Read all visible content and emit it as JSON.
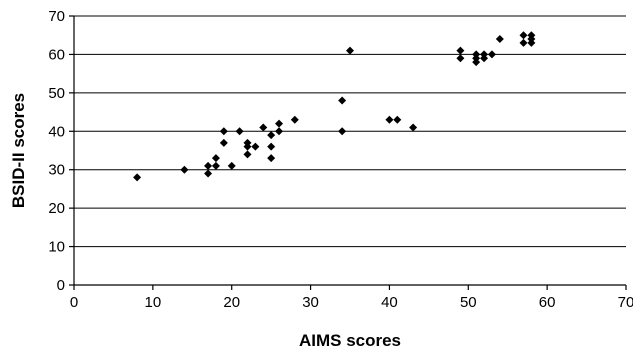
{
  "chart_data": {
    "type": "scatter",
    "title": "",
    "xlabel": "AIMS scores",
    "ylabel": "BSID-II scores",
    "xlim": [
      0,
      70
    ],
    "ylim": [
      0,
      70
    ],
    "xticks": [
      0,
      10,
      20,
      30,
      40,
      50,
      60,
      70
    ],
    "yticks": [
      0,
      10,
      20,
      30,
      40,
      50,
      60,
      70
    ],
    "grid": "horizontal",
    "marker": "diamond",
    "color": "#000000",
    "series": [
      {
        "points": [
          [
            8,
            28
          ],
          [
            14,
            30
          ],
          [
            17,
            29
          ],
          [
            17,
            31
          ],
          [
            18,
            31
          ],
          [
            18,
            33
          ],
          [
            19,
            37
          ],
          [
            19,
            40
          ],
          [
            20,
            31
          ],
          [
            21,
            40
          ],
          [
            22,
            34
          ],
          [
            22,
            36
          ],
          [
            22,
            37
          ],
          [
            23,
            36
          ],
          [
            24,
            41
          ],
          [
            25,
            33
          ],
          [
            25,
            36
          ],
          [
            25,
            39
          ],
          [
            26,
            40
          ],
          [
            26,
            42
          ],
          [
            28,
            43
          ],
          [
            34,
            40
          ],
          [
            34,
            48
          ],
          [
            35,
            61
          ],
          [
            40,
            43
          ],
          [
            41,
            43
          ],
          [
            43,
            41
          ],
          [
            49,
            59
          ],
          [
            49,
            61
          ],
          [
            51,
            58
          ],
          [
            51,
            59
          ],
          [
            51,
            60
          ],
          [
            52,
            59
          ],
          [
            52,
            60
          ],
          [
            53,
            60
          ],
          [
            54,
            64
          ],
          [
            57,
            63
          ],
          [
            57,
            65
          ],
          [
            58,
            63
          ],
          [
            58,
            64
          ],
          [
            58,
            65
          ]
        ]
      }
    ]
  }
}
